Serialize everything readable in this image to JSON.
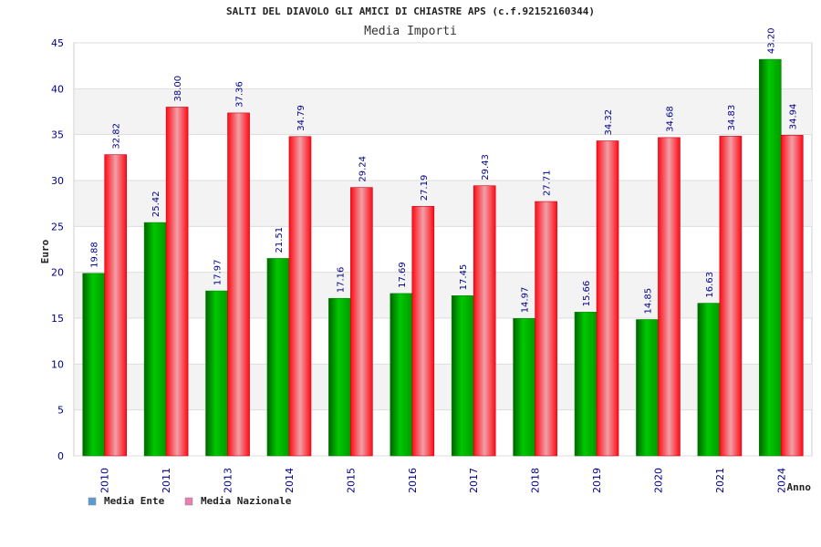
{
  "chart_data": {
    "type": "bar",
    "title": "SALTI DEL DIAVOLO GLI AMICI DI CHIASTRE APS (c.f.92152160344)",
    "subtitle": "Media Importi",
    "xlabel": "Anno",
    "ylabel": "Euro",
    "ylim": [
      0,
      45
    ],
    "yticks": [
      0,
      5,
      10,
      15,
      20,
      25,
      30,
      35,
      40,
      45
    ],
    "grid": true,
    "legend_position": "bottom-left",
    "categories": [
      "2010",
      "2011",
      "2013",
      "2014",
      "2015",
      "2016",
      "2017",
      "2018",
      "2019",
      "2020",
      "2021",
      "2024"
    ],
    "series": [
      {
        "name": "Media Ente",
        "legend_color": "#5b9bd5",
        "bar_color": "#00b000",
        "values": [
          19.88,
          25.42,
          17.97,
          21.51,
          17.16,
          17.69,
          17.45,
          14.97,
          15.66,
          14.85,
          16.63,
          43.2
        ],
        "labels": [
          "19.88",
          "25.42",
          "17.97",
          "21.51",
          "17.16",
          "17.69",
          "17.45",
          "14.97",
          "15.66",
          "14.85",
          "16.63",
          "43.20"
        ]
      },
      {
        "name": "Media Nazionale",
        "legend_color": "#e87fb0",
        "bar_color": "#e8101e",
        "values": [
          32.82,
          38.0,
          37.36,
          34.79,
          29.24,
          27.19,
          29.43,
          27.71,
          34.32,
          34.68,
          34.83,
          34.94
        ],
        "labels": [
          "32.82",
          "38.00",
          "37.36",
          "34.79",
          "29.24",
          "27.19",
          "29.43",
          "27.71",
          "34.32",
          "34.68",
          "34.83",
          "34.94"
        ]
      }
    ]
  }
}
